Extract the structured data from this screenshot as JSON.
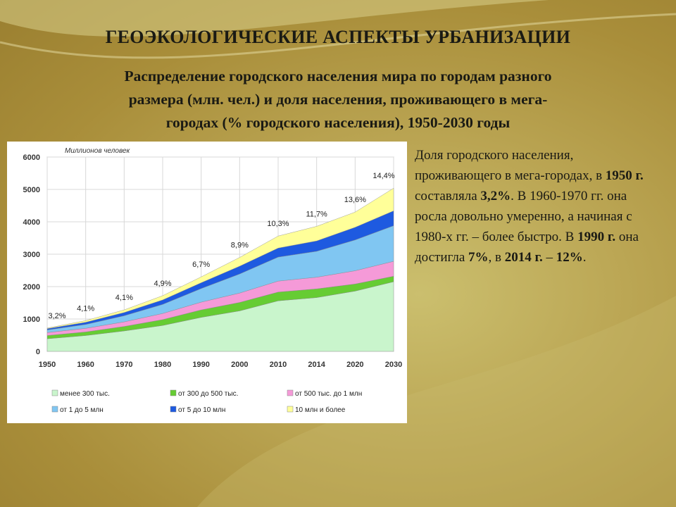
{
  "slide": {
    "title": "ГЕОЭКОЛОГИЧЕСКИЕ АСПЕКТЫ УРБАНИЗАЦИИ",
    "subtitle_lines": [
      "Распределение городского населения мира по городам разного",
      "размера (млн. чел.) и доля населения, проживающего в мега-",
      "городах (% городского населения), 1950-2030 годы"
    ]
  },
  "side_text": {
    "parts": [
      {
        "t": "Доля городского населения, проживающего в мега-городах, в ",
        "b": false
      },
      {
        "t": "1950 г.",
        "b": true
      },
      {
        "t": " составляла ",
        "b": false
      },
      {
        "t": "3,2%",
        "b": true
      },
      {
        "t": ". В 1960-1970 гг. она росла довольно умеренно, а начиная с 1980-х гг. – более быстро. В ",
        "b": false
      },
      {
        "t": "1990 г.",
        "b": true
      },
      {
        "t": " она достигла ",
        "b": false
      },
      {
        "t": "7%",
        "b": true
      },
      {
        "t": ", в ",
        "b": false
      },
      {
        "t": "2014 г.",
        "b": true
      },
      {
        "t": " – ",
        "b": false
      },
      {
        "t": "12%",
        "b": true
      },
      {
        "t": ".",
        "b": false
      }
    ]
  },
  "chart_data": {
    "type": "area",
    "stacked": true,
    "ylabel": "Миллионов человек",
    "ylim": [
      0,
      6000
    ],
    "yticks": [
      "0",
      "1000",
      "2000",
      "3000",
      "4000",
      "5000",
      "6000"
    ],
    "x": [
      "1950",
      "1960",
      "1970",
      "1980",
      "1990",
      "2000",
      "2010",
      "2014",
      "2020",
      "2030"
    ],
    "grid": true,
    "legend_position": "bottom",
    "series": [
      {
        "name": "менее 300 тыс.",
        "color": "#c9f5cc",
        "values": [
          390,
          490,
          630,
          800,
          1050,
          1250,
          1560,
          1660,
          1860,
          2150
        ]
      },
      {
        "name": "от 300 до 500 тыс.",
        "color": "#66cc33",
        "values": [
          100,
          110,
          140,
          180,
          230,
          260,
          270,
          270,
          220,
          170
        ]
      },
      {
        "name": "от 500 тыс. до 1 млн",
        "color": "#f59ad8",
        "values": [
          90,
          110,
          140,
          190,
          240,
          290,
          340,
          360,
          410,
          460
        ]
      },
      {
        "name": "от 1 до 5 млн",
        "color": "#80c6f2",
        "values": [
          80,
          120,
          190,
          280,
          420,
          590,
          740,
          800,
          950,
          1100
        ]
      },
      {
        "name": "от 5 до 10 млн",
        "color": "#1e5ae0",
        "values": [
          40,
          70,
          100,
          140,
          180,
          240,
          280,
          320,
          390,
          460
        ]
      },
      {
        "name": "10 млн и более",
        "color": "#ffff99",
        "values": [
          20,
          50,
          80,
          130,
          180,
          270,
          370,
          450,
          470,
          700
        ]
      }
    ],
    "share_labels": [
      {
        "x": "1950",
        "label": "3,2%"
      },
      {
        "x": "1960",
        "label": "4,1%"
      },
      {
        "x": "1970",
        "label": "4,1%"
      },
      {
        "x": "1980",
        "label": "4,9%"
      },
      {
        "x": "1990",
        "label": "6,7%"
      },
      {
        "x": "2000",
        "label": "8,9%"
      },
      {
        "x": "2010",
        "label": "10,3%"
      },
      {
        "x": "2014",
        "label": "11,7%"
      },
      {
        "x": "2020",
        "label": "13,6%"
      },
      {
        "x": "2030",
        "label": "14,4%"
      }
    ]
  }
}
